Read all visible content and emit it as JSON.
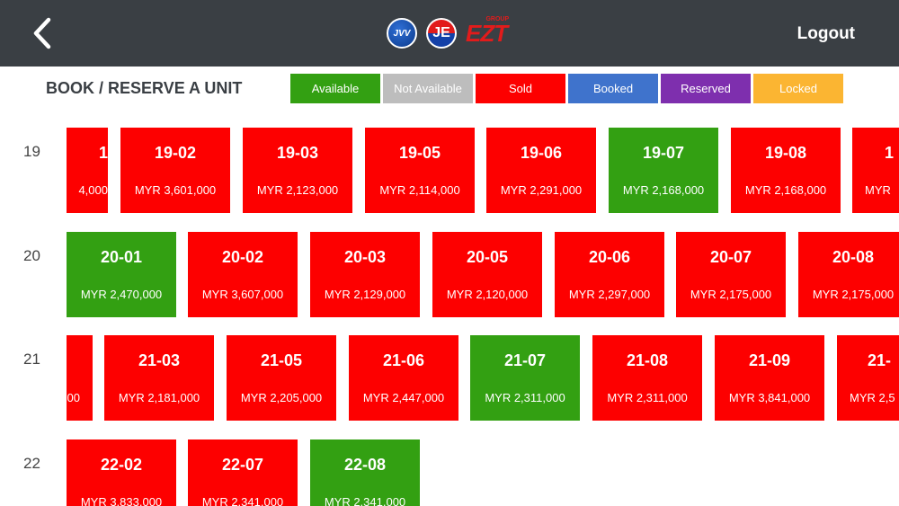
{
  "header": {
    "back_icon": "chevron-left-icon",
    "logos": [
      {
        "name": "jvv-logo",
        "text": "JVV"
      },
      {
        "name": "je-logo",
        "text": "JE"
      },
      {
        "name": "ezt-logo",
        "text": "EZT",
        "sub": "GROUP"
      }
    ],
    "logout_label": "Logout"
  },
  "page_title": "BOOK / RESERVE A UNIT",
  "legend": [
    {
      "label": "Available",
      "color": "#33a012"
    },
    {
      "label": "Not Available",
      "color": "#bdbdbd"
    },
    {
      "label": "Sold",
      "color": "#fd0000"
    },
    {
      "label": "Booked",
      "color": "#3f73cc"
    },
    {
      "label": "Reserved",
      "color": "#7e2fae"
    },
    {
      "label": "Locked",
      "color": "#fbb532"
    }
  ],
  "floors": [
    {
      "floor": "19",
      "units": [
        {
          "code": "1",
          "price": "4,000",
          "status": "sold"
        },
        {
          "code": "19-02",
          "price": "MYR 3,601,000",
          "status": "sold"
        },
        {
          "code": "19-03",
          "price": "MYR 2,123,000",
          "status": "sold"
        },
        {
          "code": "19-05",
          "price": "MYR 2,114,000",
          "status": "sold"
        },
        {
          "code": "19-06",
          "price": "MYR 2,291,000",
          "status": "sold"
        },
        {
          "code": "19-07",
          "price": "MYR 2,168,000",
          "status": "available"
        },
        {
          "code": "19-08",
          "price": "MYR 2,168,000",
          "status": "sold"
        },
        {
          "code": "1",
          "price": "MYR",
          "status": "sold"
        }
      ]
    },
    {
      "floor": "20",
      "units": [
        {
          "code": "20-01",
          "price": "MYR 2,470,000",
          "status": "available"
        },
        {
          "code": "20-02",
          "price": "MYR 3,607,000",
          "status": "sold"
        },
        {
          "code": "20-03",
          "price": "MYR 2,129,000",
          "status": "sold"
        },
        {
          "code": "20-05",
          "price": "MYR 2,120,000",
          "status": "sold"
        },
        {
          "code": "20-06",
          "price": "MYR 2,297,000",
          "status": "sold"
        },
        {
          "code": "20-07",
          "price": "MYR 2,175,000",
          "status": "sold"
        },
        {
          "code": "20-08",
          "price": "MYR 2,175,000",
          "status": "sold"
        }
      ]
    },
    {
      "floor": "21",
      "units": [
        {
          "code": "",
          "price": "00",
          "status": "sold"
        },
        {
          "code": "21-03",
          "price": "MYR 2,181,000",
          "status": "sold"
        },
        {
          "code": "21-05",
          "price": "MYR 2,205,000",
          "status": "sold"
        },
        {
          "code": "21-06",
          "price": "MYR 2,447,000",
          "status": "sold"
        },
        {
          "code": "21-07",
          "price": "MYR 2,311,000",
          "status": "available"
        },
        {
          "code": "21-08",
          "price": "MYR 2,311,000",
          "status": "sold"
        },
        {
          "code": "21-09",
          "price": "MYR 3,841,000",
          "status": "sold"
        },
        {
          "code": "21-",
          "price": "MYR 2,5",
          "status": "sold"
        }
      ]
    },
    {
      "floor": "22",
      "units": [
        {
          "code": "22-02",
          "price": "MYR 3,833,000",
          "status": "sold"
        },
        {
          "code": "22-07",
          "price": "MYR 2,341,000",
          "status": "sold"
        },
        {
          "code": "22-08",
          "price": "MYR 2,341,000",
          "status": "available"
        }
      ]
    }
  ]
}
